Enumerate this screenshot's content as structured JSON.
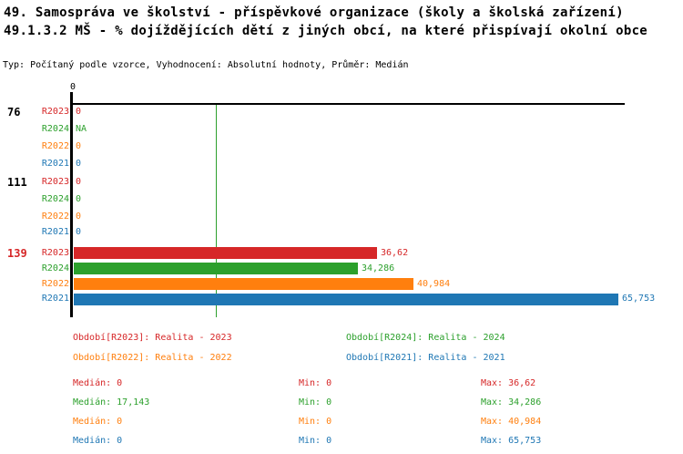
{
  "header": {
    "title_line1": "49. Samospráva ve školství - příspěvkové organizace (školy a školská zařízení)",
    "title_line2": "49.1.3.2 MŠ - % dojíždějících dětí z jiných obcí, na které přispívají okolní obce",
    "meta": "Typ: Počítaný podle vzorce, Vyhodnocení: Absolutní hodnoty, Průměr: Medián"
  },
  "colors": {
    "R2023": "#d62728",
    "R2024": "#2ca02c",
    "R2022": "#ff7f0e",
    "R2021": "#1f77b4",
    "axis": "#000000",
    "median_line": "#2ca02c",
    "black": "#000000"
  },
  "chart_data": {
    "type": "bar",
    "orientation": "horizontal",
    "title": "49.1.3.2 MŠ - % dojíždějících dětí z jiných obcí, na které přispívají okolní obce",
    "axis_tick_label": "0",
    "xlim": [
      0,
      66.5
    ],
    "grid": false,
    "median_reference_line": {
      "value": 17.143,
      "color": "#2ca02c"
    },
    "series_order": [
      "R2023",
      "R2024",
      "R2022",
      "R2021"
    ],
    "groups": [
      {
        "label": "76",
        "label_color": "#000000",
        "rows": [
          {
            "series": "R2023",
            "value": 0,
            "display": "0"
          },
          {
            "series": "R2024",
            "value": null,
            "display": "NA"
          },
          {
            "series": "R2022",
            "value": 0,
            "display": "0"
          },
          {
            "series": "R2021",
            "value": 0,
            "display": "0"
          }
        ]
      },
      {
        "label": "111",
        "label_color": "#000000",
        "rows": [
          {
            "series": "R2023",
            "value": 0,
            "display": "0"
          },
          {
            "series": "R2024",
            "value": 0,
            "display": "0"
          },
          {
            "series": "R2022",
            "value": 0,
            "display": "0"
          },
          {
            "series": "R2021",
            "value": 0,
            "display": "0"
          }
        ]
      },
      {
        "label": "139",
        "label_color": "#d62728",
        "rows": [
          {
            "series": "R2023",
            "value": 36.62,
            "display": "36,62"
          },
          {
            "series": "R2024",
            "value": 34.286,
            "display": "34,286"
          },
          {
            "series": "R2022",
            "value": 40.984,
            "display": "40,984"
          },
          {
            "series": "R2021",
            "value": 65.753,
            "display": "65,753"
          }
        ]
      }
    ]
  },
  "legend": {
    "items": [
      {
        "series": "R2023",
        "text": "Období[R2023]: Realita - 2023",
        "color": "#d62728",
        "col": 0,
        "row": 0
      },
      {
        "series": "R2024",
        "text": "Období[R2024]: Realita - 2024",
        "color": "#2ca02c",
        "col": 1,
        "row": 0
      },
      {
        "series": "R2022",
        "text": "Období[R2022]: Realita - 2022",
        "color": "#ff7f0e",
        "col": 0,
        "row": 1
      },
      {
        "series": "R2021",
        "text": "Období[R2021]: Realita - 2021",
        "color": "#1f77b4",
        "col": 1,
        "row": 1
      }
    ]
  },
  "stats": {
    "labels": {
      "median": "Medián:",
      "min": "Min:",
      "max": "Max:"
    },
    "rows": [
      {
        "series": "R2023",
        "color": "#d62728",
        "median": "0",
        "min": "0",
        "max": "36,62"
      },
      {
        "series": "R2024",
        "color": "#2ca02c",
        "median": "17,143",
        "min": "0",
        "max": "34,286"
      },
      {
        "series": "R2022",
        "color": "#ff7f0e",
        "median": "0",
        "min": "0",
        "max": "40,984"
      },
      {
        "series": "R2021",
        "color": "#1f77b4",
        "median": "0",
        "min": "0",
        "max": "65,753"
      }
    ]
  }
}
